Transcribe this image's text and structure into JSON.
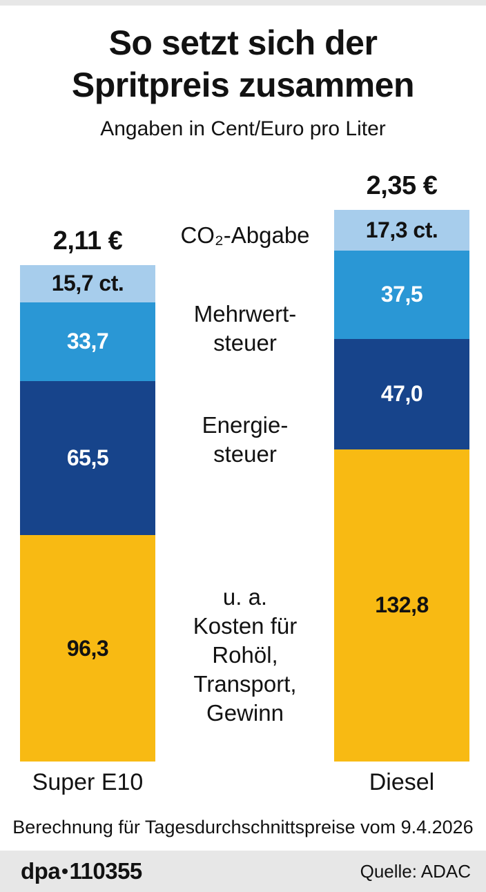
{
  "header": {
    "title": "So setzt sich der\nSpritpreis zusammen",
    "subtitle": "Angaben in Cent/Euro pro Liter"
  },
  "chart_data": {
    "type": "bar",
    "stacked": true,
    "unit": "Cent/Euro pro Liter",
    "grid": false,
    "categories": [
      "Super E10",
      "Diesel"
    ],
    "totals": [
      "2,11 €",
      "2,35 €"
    ],
    "column_sums_cent": [
      211.2,
      234.6
    ],
    "series": [
      {
        "name": "CO₂-Abgabe",
        "color": "#a7cdec",
        "values": [
          15.7,
          17.3
        ],
        "labels": [
          "15,7 ct.",
          "17,3 ct."
        ]
      },
      {
        "name": "Mehrwertsteuer",
        "color": "#2a97d5",
        "values": [
          33.7,
          37.5
        ],
        "labels": [
          "33,7",
          "37,5"
        ]
      },
      {
        "name": "Energiesteuer",
        "color": "#17448b",
        "values": [
          65.5,
          47.0
        ],
        "labels": [
          "65,5",
          "47,0"
        ]
      },
      {
        "name": "u. a. Kosten für Rohöl, Transport, Gewinn",
        "color": "#f8ba13",
        "values": [
          96.3,
          132.8
        ],
        "labels": [
          "96,3",
          "132,8"
        ]
      }
    ],
    "series_display_labels": {
      "co2": "CO₂-Abgabe",
      "mwst": "Mehrwert-\nsteuer",
      "energie": "Energie-\nsteuer",
      "other": "u. a.\nKosten für\nRohöl,\nTransport,\nGewinn"
    },
    "legend_position": "center-between-bars"
  },
  "footer": {
    "note": "Berechnung für Tagesdurchschnittspreise vom 9.4.2026",
    "credit": {
      "logo": "dpa",
      "separator": "•",
      "number": "110355"
    },
    "source": "Quelle: ADAC"
  }
}
